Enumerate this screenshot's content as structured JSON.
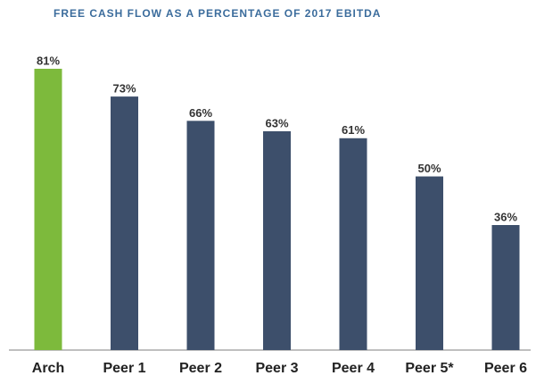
{
  "chart_data": {
    "type": "bar",
    "title": "FREE CASH FLOW AS A PERCENTAGE OF 2017 EBITDA",
    "categories": [
      "Arch",
      "Peer 1",
      "Peer 2",
      "Peer 3",
      "Peer 4",
      "Peer 5*",
      "Peer 6"
    ],
    "values": [
      81,
      73,
      66,
      63,
      61,
      50,
      36
    ],
    "value_labels": [
      "81%",
      "73%",
      "66%",
      "63%",
      "61%",
      "50%",
      "36%"
    ],
    "colors": [
      "#7dba3c",
      "#3d4f6b",
      "#3d4f6b",
      "#3d4f6b",
      "#3d4f6b",
      "#3d4f6b",
      "#3d4f6b"
    ]
  }
}
